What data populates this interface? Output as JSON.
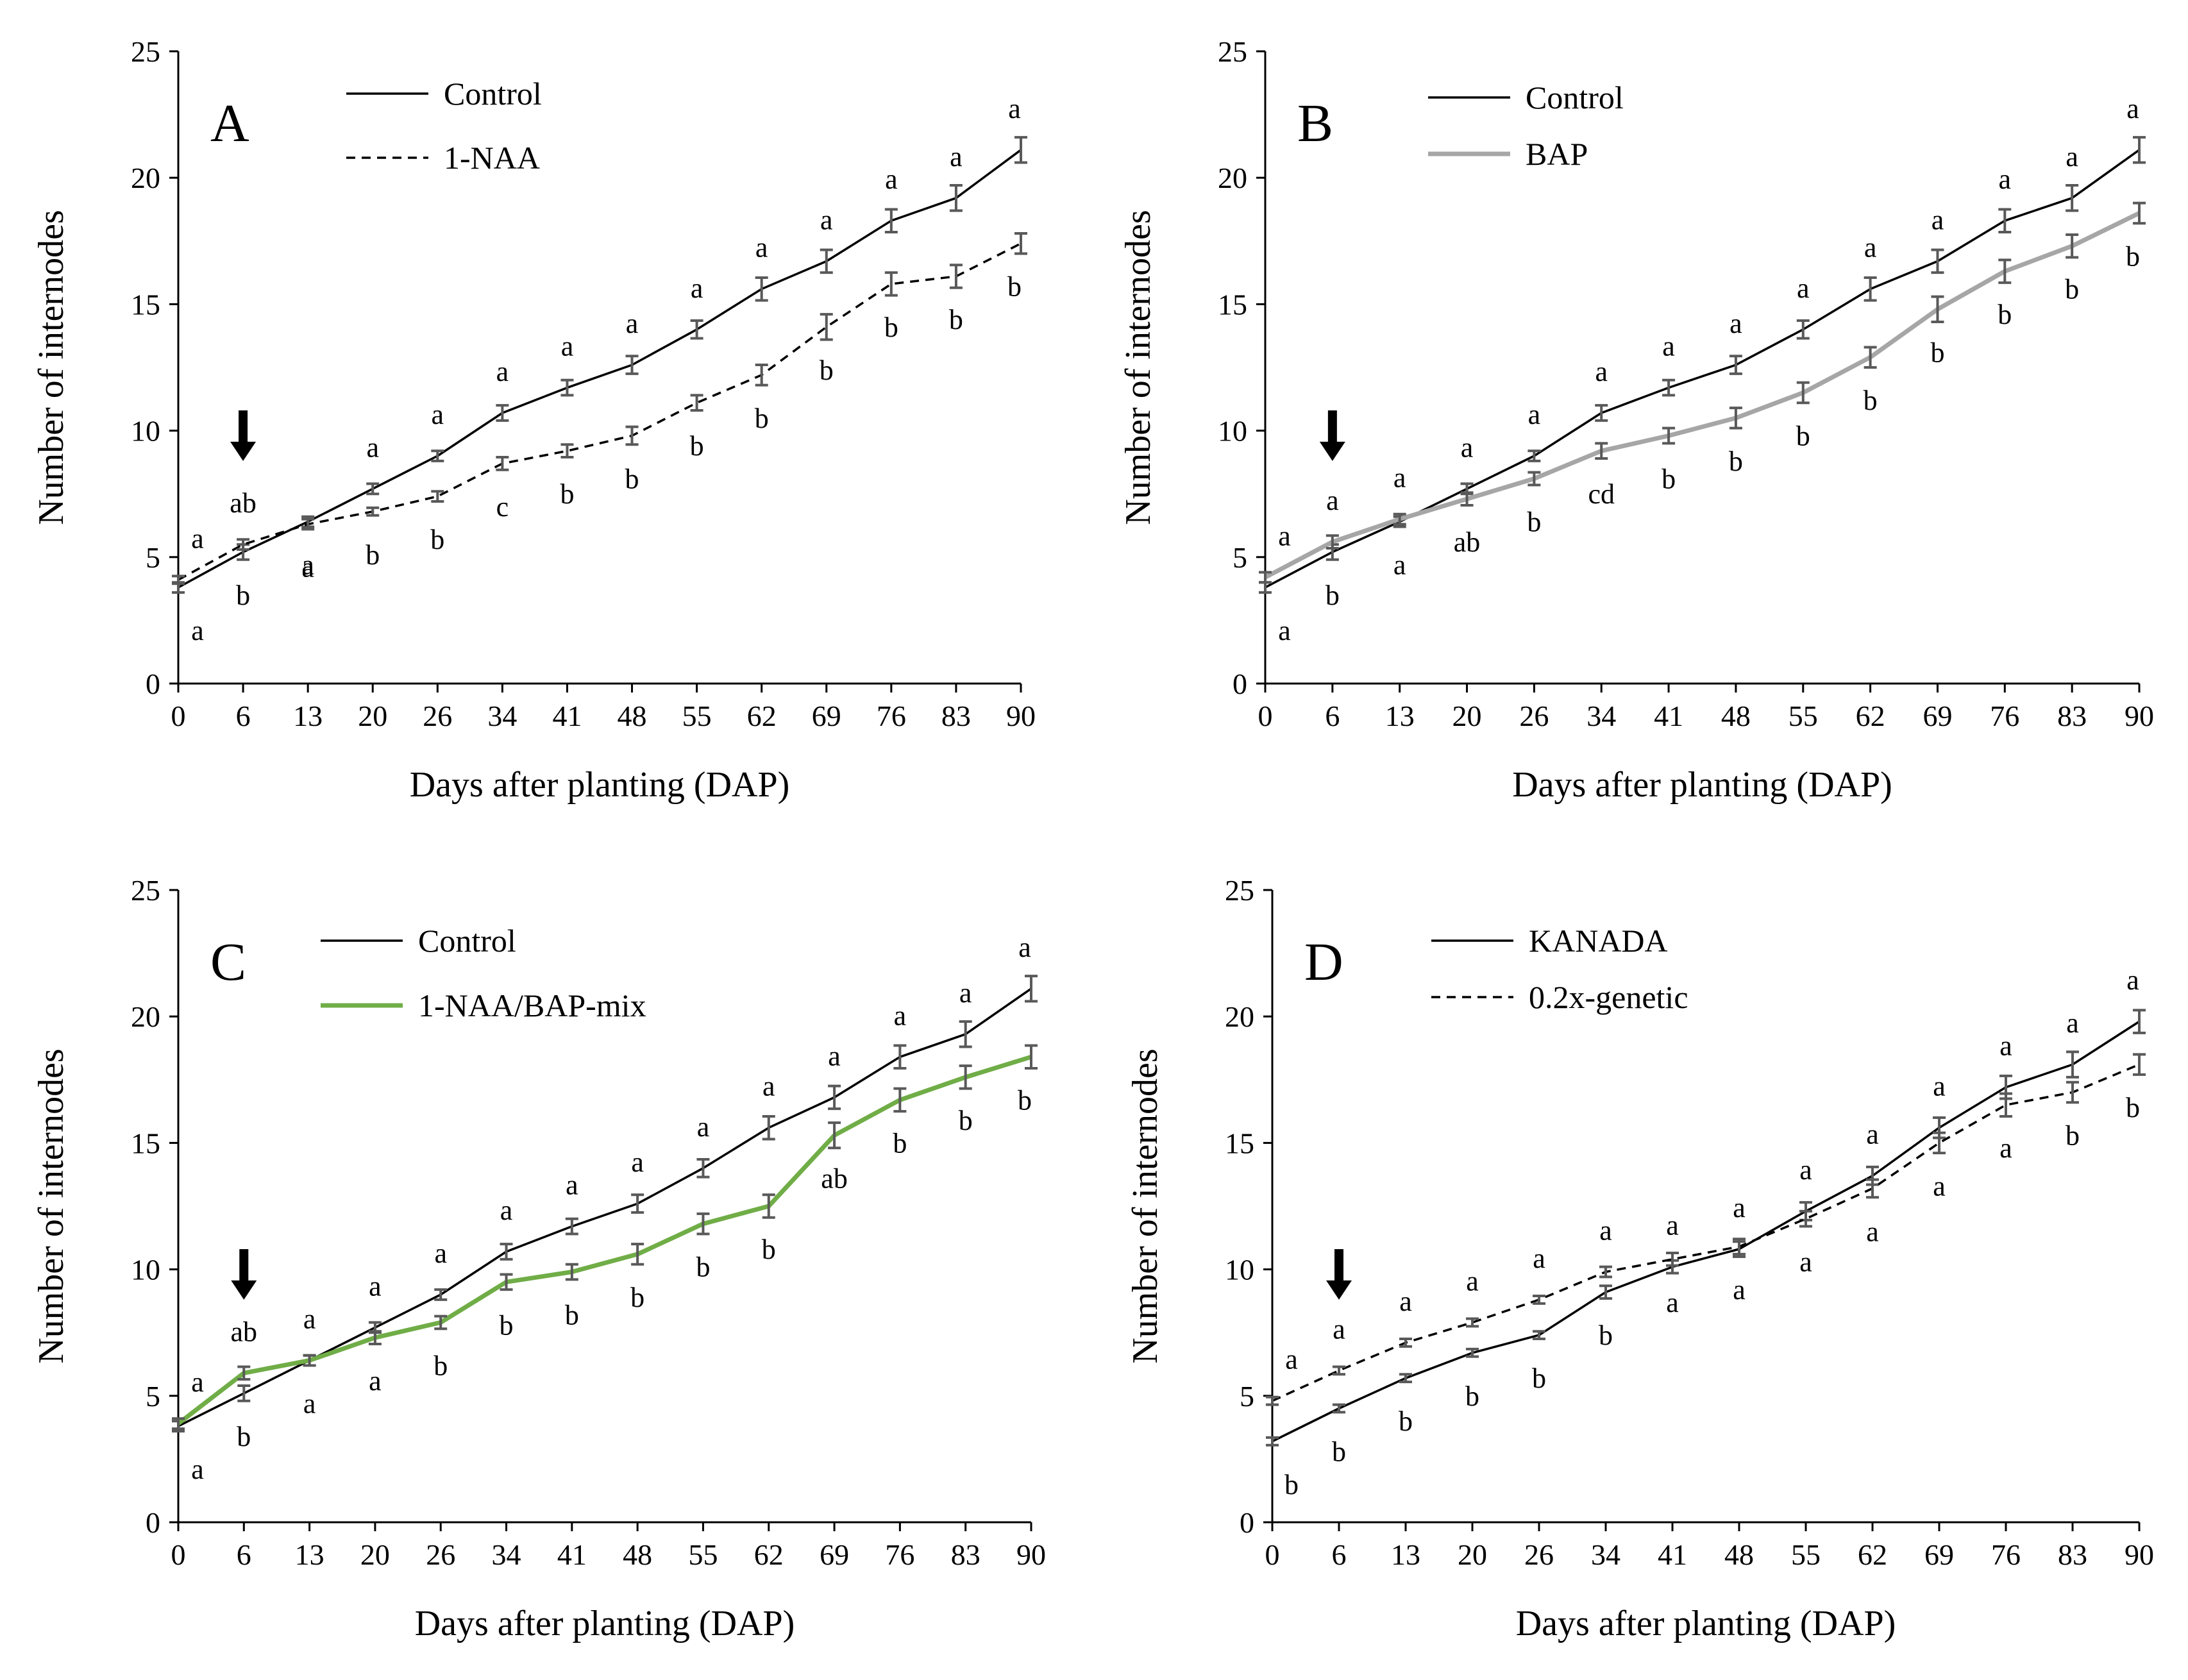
{
  "chart_data": [
    {
      "type": "line",
      "panel": "A",
      "xlabel": "Days after planting (DAP)",
      "ylabel": "Number of internodes",
      "ylim": [
        0,
        25
      ],
      "yticks": [
        0,
        5,
        10,
        15,
        20,
        25
      ],
      "x": [
        0,
        6,
        13,
        20,
        26,
        34,
        41,
        48,
        55,
        62,
        69,
        76,
        83,
        90
      ],
      "arrow_at": 6,
      "legend": [
        "Control",
        "1-NAA"
      ],
      "series": [
        {
          "name": "Control",
          "color": "#000000",
          "dash": "solid",
          "values": [
            3.8,
            5.2,
            6.4,
            7.7,
            9.0,
            10.7,
            11.7,
            12.6,
            14.0,
            15.6,
            16.7,
            18.3,
            19.2,
            21.1
          ],
          "errors": [
            0.2,
            0.3,
            0.2,
            0.2,
            0.2,
            0.3,
            0.3,
            0.35,
            0.35,
            0.45,
            0.45,
            0.45,
            0.5,
            0.5
          ],
          "letters": [
            "a",
            "b",
            "a",
            "a",
            "a",
            "a",
            "a",
            "a",
            "a",
            "a",
            "a",
            "a",
            "a",
            "a"
          ],
          "letter_pos": [
            "below",
            "below",
            "below",
            "above",
            "above",
            "above",
            "above",
            "above",
            "above",
            "above",
            "above",
            "above",
            "above",
            "above"
          ]
        },
        {
          "name": "1-NAA",
          "color": "#000000",
          "dash": "dashed",
          "values": [
            4.1,
            5.5,
            6.3,
            6.8,
            7.4,
            8.7,
            9.2,
            9.8,
            11.1,
            12.2,
            14.1,
            15.8,
            16.1,
            17.4
          ],
          "errors": [
            0.15,
            0.2,
            0.2,
            0.15,
            0.2,
            0.25,
            0.25,
            0.35,
            0.3,
            0.4,
            0.5,
            0.45,
            0.45,
            0.4
          ],
          "letters": [
            "a",
            "ab",
            "a",
            "b",
            "b",
            "c",
            "b",
            "b",
            "b",
            "b",
            "b",
            "b",
            "b",
            "b"
          ],
          "letter_pos": [
            "above",
            "above",
            "below",
            "below",
            "below",
            "below",
            "below",
            "below",
            "below",
            "below",
            "below",
            "below",
            "below",
            "below"
          ]
        }
      ]
    },
    {
      "type": "line",
      "panel": "B",
      "xlabel": "Days after planting (DAP)",
      "ylabel": "Number of internodes",
      "ylim": [
        0,
        25
      ],
      "yticks": [
        0,
        5,
        10,
        15,
        20,
        25
      ],
      "x": [
        0,
        6,
        13,
        20,
        26,
        34,
        41,
        48,
        55,
        62,
        69,
        76,
        83,
        90
      ],
      "arrow_at": 6,
      "legend": [
        "Control",
        "BAP"
      ],
      "series": [
        {
          "name": "Control",
          "color": "#000000",
          "dash": "solid",
          "values": [
            3.8,
            5.2,
            6.4,
            7.7,
            9.0,
            10.7,
            11.7,
            12.6,
            14.0,
            15.6,
            16.7,
            18.3,
            19.2,
            21.1
          ],
          "errors": [
            0.2,
            0.3,
            0.2,
            0.2,
            0.2,
            0.3,
            0.3,
            0.35,
            0.35,
            0.45,
            0.45,
            0.45,
            0.5,
            0.5
          ],
          "letters": [
            "a",
            "b",
            "a",
            "a",
            "a",
            "a",
            "a",
            "a",
            "a",
            "a",
            "a",
            "a",
            "a",
            "a"
          ],
          "letter_pos": [
            "below",
            "below",
            "below",
            "above",
            "above",
            "above",
            "above",
            "above",
            "above",
            "above",
            "above",
            "above",
            "above",
            "above"
          ]
        },
        {
          "name": "BAP",
          "color": "#a6a6a6",
          "dash": "solid",
          "values": [
            4.2,
            5.6,
            6.5,
            7.3,
            8.1,
            9.2,
            9.8,
            10.5,
            11.5,
            12.9,
            14.8,
            16.3,
            17.3,
            18.6
          ],
          "errors": [
            0.2,
            0.25,
            0.2,
            0.25,
            0.25,
            0.3,
            0.3,
            0.4,
            0.4,
            0.4,
            0.5,
            0.45,
            0.45,
            0.4
          ],
          "letters": [
            "a",
            "a",
            "a",
            "ab",
            "b",
            "cd",
            "b",
            "b",
            "b",
            "b",
            "b",
            "b",
            "b",
            "b"
          ],
          "letter_pos": [
            "above",
            "above",
            "above",
            "below",
            "below",
            "below",
            "below",
            "below",
            "below",
            "below",
            "below",
            "below",
            "below",
            "below"
          ]
        }
      ]
    },
    {
      "type": "line",
      "panel": "C",
      "xlabel": "Days after planting (DAP)",
      "ylabel": "Number of internodes",
      "ylim": [
        0,
        25
      ],
      "yticks": [
        0,
        5,
        10,
        15,
        20,
        25
      ],
      "x": [
        0,
        6,
        13,
        20,
        26,
        34,
        41,
        48,
        55,
        62,
        69,
        76,
        83,
        90
      ],
      "arrow_at": 6,
      "legend": [
        "Control",
        "1-NAA/BAP-mix"
      ],
      "series": [
        {
          "name": "Control",
          "color": "#000000",
          "dash": "solid",
          "values": [
            3.8,
            5.1,
            6.4,
            7.7,
            9.0,
            10.7,
            11.7,
            12.6,
            14.0,
            15.6,
            16.8,
            18.4,
            19.3,
            21.1
          ],
          "errors": [
            0.2,
            0.3,
            0.2,
            0.2,
            0.2,
            0.3,
            0.3,
            0.35,
            0.35,
            0.45,
            0.45,
            0.45,
            0.5,
            0.5
          ],
          "letters": [
            "a",
            "b",
            "a",
            "a",
            "a",
            "a",
            "a",
            "a",
            "a",
            "a",
            "a",
            "a",
            "a",
            "a"
          ],
          "letter_pos": [
            "below",
            "below",
            "below",
            "above",
            "above",
            "above",
            "above",
            "above",
            "above",
            "above",
            "above",
            "above",
            "above",
            "above"
          ]
        },
        {
          "name": "1-NAA/BAP-mix",
          "color": "#70ad47",
          "dash": "solid",
          "values": [
            3.9,
            5.9,
            6.4,
            7.3,
            7.9,
            9.5,
            9.9,
            10.6,
            11.8,
            12.5,
            15.3,
            16.7,
            17.6,
            18.4
          ],
          "errors": [
            0.2,
            0.25,
            0.2,
            0.25,
            0.25,
            0.3,
            0.3,
            0.4,
            0.4,
            0.45,
            0.5,
            0.45,
            0.45,
            0.45
          ],
          "letters": [
            "a",
            "ab",
            "a",
            "a",
            "b",
            "b",
            "b",
            "b",
            "b",
            "b",
            "ab",
            "b",
            "b",
            "b"
          ],
          "letter_pos": [
            "above",
            "above",
            "above",
            "below",
            "below",
            "below",
            "below",
            "below",
            "below",
            "below",
            "below",
            "below",
            "below",
            "below"
          ]
        }
      ]
    },
    {
      "type": "line",
      "panel": "D",
      "xlabel": "Days after planting (DAP)",
      "ylabel": "Number of internodes",
      "ylim": [
        0,
        25
      ],
      "yticks": [
        0,
        5,
        10,
        15,
        20,
        25
      ],
      "x": [
        0,
        6,
        13,
        20,
        26,
        34,
        41,
        48,
        55,
        62,
        69,
        76,
        83,
        90
      ],
      "arrow_at": 6,
      "legend": [
        "KANADA",
        "0.2x-genetic"
      ],
      "series": [
        {
          "name": "KANADA",
          "color": "#000000",
          "dash": "solid",
          "values": [
            3.2,
            4.5,
            5.7,
            6.7,
            7.4,
            9.1,
            10.1,
            10.8,
            12.3,
            13.7,
            15.6,
            17.2,
            18.1,
            19.8
          ],
          "errors": [
            0.15,
            0.15,
            0.15,
            0.15,
            0.15,
            0.25,
            0.25,
            0.3,
            0.35,
            0.35,
            0.4,
            0.45,
            0.5,
            0.45
          ],
          "letters": [
            "b",
            "b",
            "b",
            "b",
            "b",
            "b",
            "a",
            "a",
            "a",
            "a",
            "a",
            "a",
            "a",
            "a"
          ],
          "letter_pos": [
            "below",
            "below",
            "below",
            "below",
            "below",
            "below",
            "above",
            "above",
            "above",
            "above",
            "above",
            "above",
            "above",
            "above"
          ]
        },
        {
          "name": "0.2x-genetic",
          "color": "#000000",
          "dash": "dashed",
          "values": [
            4.8,
            6.0,
            7.1,
            7.9,
            8.8,
            9.9,
            10.4,
            10.9,
            12.0,
            13.2,
            15.0,
            16.5,
            17.0,
            18.1
          ],
          "errors": [
            0.15,
            0.15,
            0.15,
            0.15,
            0.15,
            0.2,
            0.25,
            0.3,
            0.3,
            0.35,
            0.4,
            0.45,
            0.4,
            0.4
          ],
          "letters": [
            "a",
            "a",
            "a",
            "a",
            "a",
            "a",
            "a",
            "a",
            "a",
            "a",
            "a",
            "a",
            "b",
            "b"
          ],
          "letter_pos": [
            "above",
            "above",
            "above",
            "above",
            "above",
            "above",
            "below",
            "below",
            "below",
            "below",
            "below",
            "below",
            "below",
            "below"
          ]
        }
      ]
    }
  ]
}
